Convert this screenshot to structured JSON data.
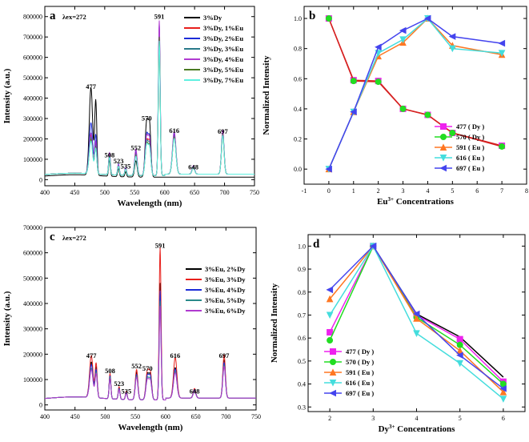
{
  "chart_data": [
    {
      "panel": "a",
      "type": "line",
      "panel_label": "a",
      "excitation_label": "λex=272",
      "xlabel": "Wavelength (nm)",
      "ylabel": "Intensity (a.u.)",
      "xlim": [
        400,
        750
      ],
      "ylim": [
        -30000,
        850000
      ],
      "xticks": [
        400,
        450,
        500,
        550,
        600,
        650,
        700,
        750
      ],
      "yticks": [
        0,
        100000,
        200000,
        300000,
        400000,
        500000,
        600000,
        700000,
        800000
      ],
      "legend_position": "top-right",
      "peak_labels": [
        {
          "text": "477",
          "x": 477,
          "y": 445000
        },
        {
          "text": "508",
          "x": 508,
          "y": 110000
        },
        {
          "text": "523",
          "x": 523,
          "y": 80000
        },
        {
          "text": "535",
          "x": 535,
          "y": 55000
        },
        {
          "text": "552",
          "x": 552,
          "y": 145000
        },
        {
          "text": "570",
          "x": 570,
          "y": 290000
        },
        {
          "text": "591",
          "x": 591,
          "y": 790000
        },
        {
          "text": "616",
          "x": 616,
          "y": 230000
        },
        {
          "text": "648",
          "x": 648,
          "y": 50000
        },
        {
          "text": "697",
          "x": 697,
          "y": 225000
        }
      ],
      "series": [
        {
          "name": "3%Dy",
          "color": "#000000",
          "baseline": 20000,
          "tail": 0,
          "peaks": {
            "477": 430000,
            "485": 365000,
            "508": 80000,
            "523": 40000,
            "535": 25000,
            "552": 80000,
            "570": 270000,
            "575": 240000,
            "591": 0,
            "616": 0,
            "648": 0,
            "697": 0
          }
        },
        {
          "name": "3%Dy, 1%Eu",
          "color": "#e8201c",
          "baseline": 20000,
          "tail": 15000,
          "peaks": {
            "477": 190000,
            "485": 150000,
            "508": 100000,
            "523": 50000,
            "535": 35000,
            "552": 110000,
            "570": 170000,
            "575": 150000,
            "591": 720000,
            "616": 190000,
            "648": 35000,
            "697": 205000
          }
        },
        {
          "name": "3%Dy, 2%Eu",
          "color": "#1c2cd8",
          "baseline": 20000,
          "tail": 15000,
          "peaks": {
            "477": 250000,
            "485": 190000,
            "508": 105000,
            "523": 55000,
            "535": 38000,
            "552": 120000,
            "570": 200000,
            "575": 170000,
            "591": 740000,
            "616": 200000,
            "648": 40000,
            "697": 210000
          }
        },
        {
          "name": "3%Dy, 3%Eu",
          "color": "#2a7a8a",
          "baseline": 20000,
          "tail": 15000,
          "peaks": {
            "477": 180000,
            "485": 140000,
            "508": 95000,
            "523": 48000,
            "535": 33000,
            "552": 105000,
            "570": 165000,
            "575": 140000,
            "591": 700000,
            "616": 185000,
            "648": 35000,
            "697": 200000
          }
        },
        {
          "name": "3%Dy, 4%Eu",
          "color": "#b03ad0",
          "baseline": 20000,
          "tail": 15000,
          "peaks": {
            "477": 200000,
            "485": 160000,
            "508": 110000,
            "523": 52000,
            "535": 36000,
            "552": 130000,
            "570": 190000,
            "575": 165000,
            "591": 760000,
            "616": 210000,
            "648": 42000,
            "697": 215000
          }
        },
        {
          "name": "3%Dy, 5%Eu",
          "color": "#4a7a22",
          "baseline": 20000,
          "tail": 15000,
          "peaks": {
            "477": 170000,
            "485": 130000,
            "508": 90000,
            "523": 45000,
            "535": 30000,
            "552": 100000,
            "570": 155000,
            "575": 130000,
            "591": 680000,
            "616": 180000,
            "648": 33000,
            "697": 195000
          }
        },
        {
          "name": "3%Dy, 7%Eu",
          "color": "#5ff0e0",
          "baseline": 20000,
          "tail": 15000,
          "peaks": {
            "477": 160000,
            "485": 125000,
            "508": 88000,
            "523": 44000,
            "535": 30000,
            "552": 95000,
            "570": 150000,
            "575": 125000,
            "591": 660000,
            "616": 175000,
            "648": 32000,
            "697": 190000
          }
        }
      ]
    },
    {
      "panel": "b",
      "type": "line",
      "panel_label": "b",
      "xlabel": "Eu",
      "xlabel_sup": "3+",
      "xlabel_rest": " Concentrations",
      "ylabel": "Normalized Intensity",
      "xlim": [
        -1,
        8
      ],
      "ylim": [
        -0.1,
        1.08
      ],
      "xticks": [
        -1,
        0,
        1,
        2,
        3,
        4,
        5,
        6,
        7,
        8
      ],
      "yticks": [
        0.0,
        0.2,
        0.4,
        0.6,
        0.8,
        1.0
      ],
      "legend_position": "bottom-right",
      "series": [
        {
          "name": "477 ( Dy )",
          "color": "#ee22ee",
          "marker": "square",
          "x": [
            0,
            1,
            2,
            3,
            4,
            5,
            7
          ],
          "y": [
            1.0,
            0.59,
            0.585,
            0.4,
            0.36,
            0.24,
            0.155
          ]
        },
        {
          "name": "570 ( Dy )",
          "color": "#22dd22",
          "marker": "circle",
          "x": [
            0,
            1,
            2,
            3,
            4,
            5,
            7
          ],
          "y": [
            1.0,
            0.585,
            0.58,
            0.4,
            0.36,
            0.24,
            0.15
          ]
        },
        {
          "name": "591 ( Eu )",
          "color": "#ff7722",
          "marker": "triangle-up",
          "x": [
            0,
            1,
            2,
            3,
            4,
            5,
            7
          ],
          "y": [
            0.0,
            0.38,
            0.75,
            0.84,
            1.0,
            0.82,
            0.76
          ]
        },
        {
          "name": "616 ( Eu )",
          "color": "#44dddd",
          "marker": "triangle-down",
          "x": [
            0,
            1,
            2,
            3,
            4,
            5,
            7
          ],
          "y": [
            0.0,
            0.38,
            0.77,
            0.86,
            1.0,
            0.8,
            0.77
          ]
        },
        {
          "name": "697 ( Eu )",
          "color": "#4444ee",
          "marker": "triangle-left",
          "x": [
            0,
            1,
            2,
            3,
            4,
            5,
            7
          ],
          "y": [
            0.0,
            0.38,
            0.81,
            0.92,
            1.0,
            0.88,
            0.835
          ]
        }
      ],
      "decay_line_color": "#d62020"
    },
    {
      "panel": "c",
      "type": "line",
      "panel_label": "c",
      "excitation_label": "λex=272",
      "xlabel": "Wavelength (nm)",
      "ylabel": "Intensity (a.u.)",
      "xlim": [
        400,
        750
      ],
      "ylim": [
        -20000,
        700000
      ],
      "xticks": [
        400,
        450,
        500,
        550,
        600,
        650,
        700,
        750
      ],
      "yticks": [
        0,
        100000,
        200000,
        300000,
        400000,
        500000,
        600000,
        700000
      ],
      "legend_position": "top-right",
      "peak_labels": [
        {
          "text": "477",
          "x": 477,
          "y": 185000
        },
        {
          "text": "508",
          "x": 508,
          "y": 125000
        },
        {
          "text": "523",
          "x": 523,
          "y": 75000
        },
        {
          "text": "535",
          "x": 535,
          "y": 45000
        },
        {
          "text": "552",
          "x": 552,
          "y": 145000
        },
        {
          "text": "570",
          "x": 570,
          "y": 135000
        },
        {
          "text": "591",
          "x": 591,
          "y": 620000
        },
        {
          "text": "616",
          "x": 616,
          "y": 185000
        },
        {
          "text": "648",
          "x": 648,
          "y": 45000
        },
        {
          "text": "697",
          "x": 697,
          "y": 185000
        }
      ],
      "series": [
        {
          "name": "3%Eu, 2%Dy",
          "color": "#000000",
          "baseline": 20000,
          "tail": 15000,
          "peaks": {
            "477": 140000,
            "485": 120000,
            "508": 95000,
            "523": 45000,
            "535": 30000,
            "552": 110000,
            "570": 100000,
            "575": 90000,
            "591": 460000,
            "616": 120000,
            "648": 35000,
            "697": 150000
          }
        },
        {
          "name": "3%Eu, 3%Dy",
          "color": "#e8201c",
          "baseline": 20000,
          "tail": 15000,
          "peaks": {
            "477": 165000,
            "485": 135000,
            "508": 100000,
            "523": 50000,
            "535": 33000,
            "552": 120000,
            "570": 115000,
            "575": 100000,
            "591": 600000,
            "616": 160000,
            "648": 38000,
            "697": 170000
          }
        },
        {
          "name": "3%Eu, 4%Dy",
          "color": "#1c2cd8",
          "baseline": 20000,
          "tail": 15000,
          "peaks": {
            "477": 130000,
            "485": 110000,
            "508": 90000,
            "523": 43000,
            "535": 28000,
            "552": 100000,
            "570": 95000,
            "575": 85000,
            "591": 430000,
            "616": 115000,
            "648": 33000,
            "697": 140000
          }
        },
        {
          "name": "3%Eu, 5%Dy",
          "color": "#2a8a8a",
          "baseline": 20000,
          "tail": 15000,
          "peaks": {
            "477": 115000,
            "485": 100000,
            "508": 85000,
            "523": 40000,
            "535": 26000,
            "552": 95000,
            "570": 85000,
            "575": 75000,
            "591": 390000,
            "616": 105000,
            "648": 30000,
            "697": 130000
          }
        },
        {
          "name": "3%Eu, 6%Dy",
          "color": "#b03ad0",
          "baseline": 20000,
          "tail": 15000,
          "peaks": {
            "477": 110000,
            "485": 95000,
            "508": 80000,
            "523": 38000,
            "535": 25000,
            "552": 90000,
            "570": 80000,
            "575": 70000,
            "591": 370000,
            "616": 100000,
            "648": 28000,
            "697": 125000
          }
        }
      ]
    },
    {
      "panel": "d",
      "type": "line",
      "panel_label": "d",
      "xlabel": "Dy",
      "xlabel_sup": "3+",
      "xlabel_rest": " Concentrations",
      "ylabel": "Normalized Intensity",
      "xlim": [
        1.5,
        6.5
      ],
      "ylim": [
        0.28,
        1.05
      ],
      "xticks": [
        2,
        3,
        4,
        5,
        6
      ],
      "yticks": [
        0.3,
        0.4,
        0.5,
        0.6,
        0.7,
        0.8,
        0.9,
        1.0
      ],
      "legend_position": "bottom-left",
      "series": [
        {
          "name": "477 ( Dy )",
          "color": "#ee22ee",
          "marker": "square",
          "x": [
            2,
            3,
            4,
            5,
            6
          ],
          "y": [
            0.625,
            1.0,
            0.7,
            0.595,
            0.41
          ]
        },
        {
          "name": "570 ( Dy )",
          "color": "#22dd22",
          "marker": "circle",
          "x": [
            2,
            3,
            4,
            5,
            6
          ],
          "y": [
            0.59,
            1.0,
            0.69,
            0.57,
            0.4
          ]
        },
        {
          "name": "591 ( Eu )",
          "color": "#ff7722",
          "marker": "triangle-up",
          "x": [
            2,
            3,
            4,
            5,
            6
          ],
          "y": [
            0.77,
            1.0,
            0.685,
            0.545,
            0.365
          ]
        },
        {
          "name": "616 ( Eu )",
          "color": "#44dddd",
          "marker": "triangle-down",
          "x": [
            2,
            3,
            4,
            5,
            6
          ],
          "y": [
            0.7,
            1.0,
            0.62,
            0.49,
            0.335
          ]
        },
        {
          "name": "697 ( Eu )",
          "color": "#4444ee",
          "marker": "triangle-left",
          "x": [
            2,
            3,
            4,
            5,
            6
          ],
          "y": [
            0.81,
            1.0,
            0.705,
            0.525,
            0.38
          ]
        }
      ],
      "extra_line": {
        "color": "#000000",
        "x": [
          3,
          4,
          5,
          6
        ],
        "y": [
          1.0,
          0.705,
          0.605,
          0.43
        ]
      }
    }
  ]
}
